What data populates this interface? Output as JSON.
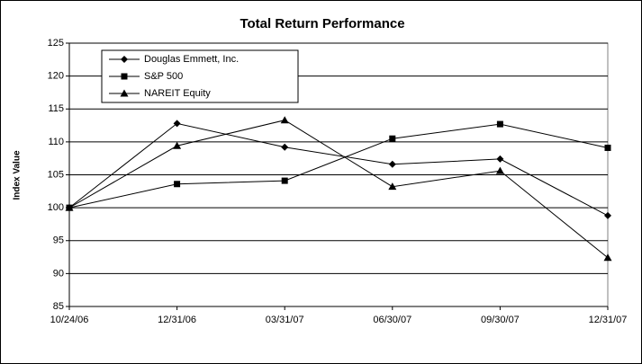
{
  "chart_data": {
    "type": "line",
    "title": "Total Return Performance",
    "y_label": "Index Value",
    "categories": [
      "10/24/06",
      "12/31/06",
      "03/31/07",
      "06/30/07",
      "09/30/07",
      "12/31/07"
    ],
    "series": [
      {
        "name": "Douglas Emmett, Inc.",
        "color": "#000000",
        "marker": "diamond",
        "values": [
          100,
          112.8,
          109.2,
          106.6,
          107.4,
          98.8
        ]
      },
      {
        "name": "S&P 500",
        "color": "#000000",
        "marker": "square",
        "values": [
          100,
          103.6,
          104.1,
          110.5,
          112.7,
          109.1
        ]
      },
      {
        "name": "NAREIT Equity",
        "color": "#000000",
        "marker": "triangle",
        "values": [
          100,
          109.4,
          113.3,
          103.2,
          105.6,
          92.4
        ]
      }
    ],
    "ylim": [
      85,
      125
    ],
    "yticks": [
      85,
      90,
      95,
      100,
      105,
      110,
      115,
      120,
      125
    ],
    "grid": true
  }
}
